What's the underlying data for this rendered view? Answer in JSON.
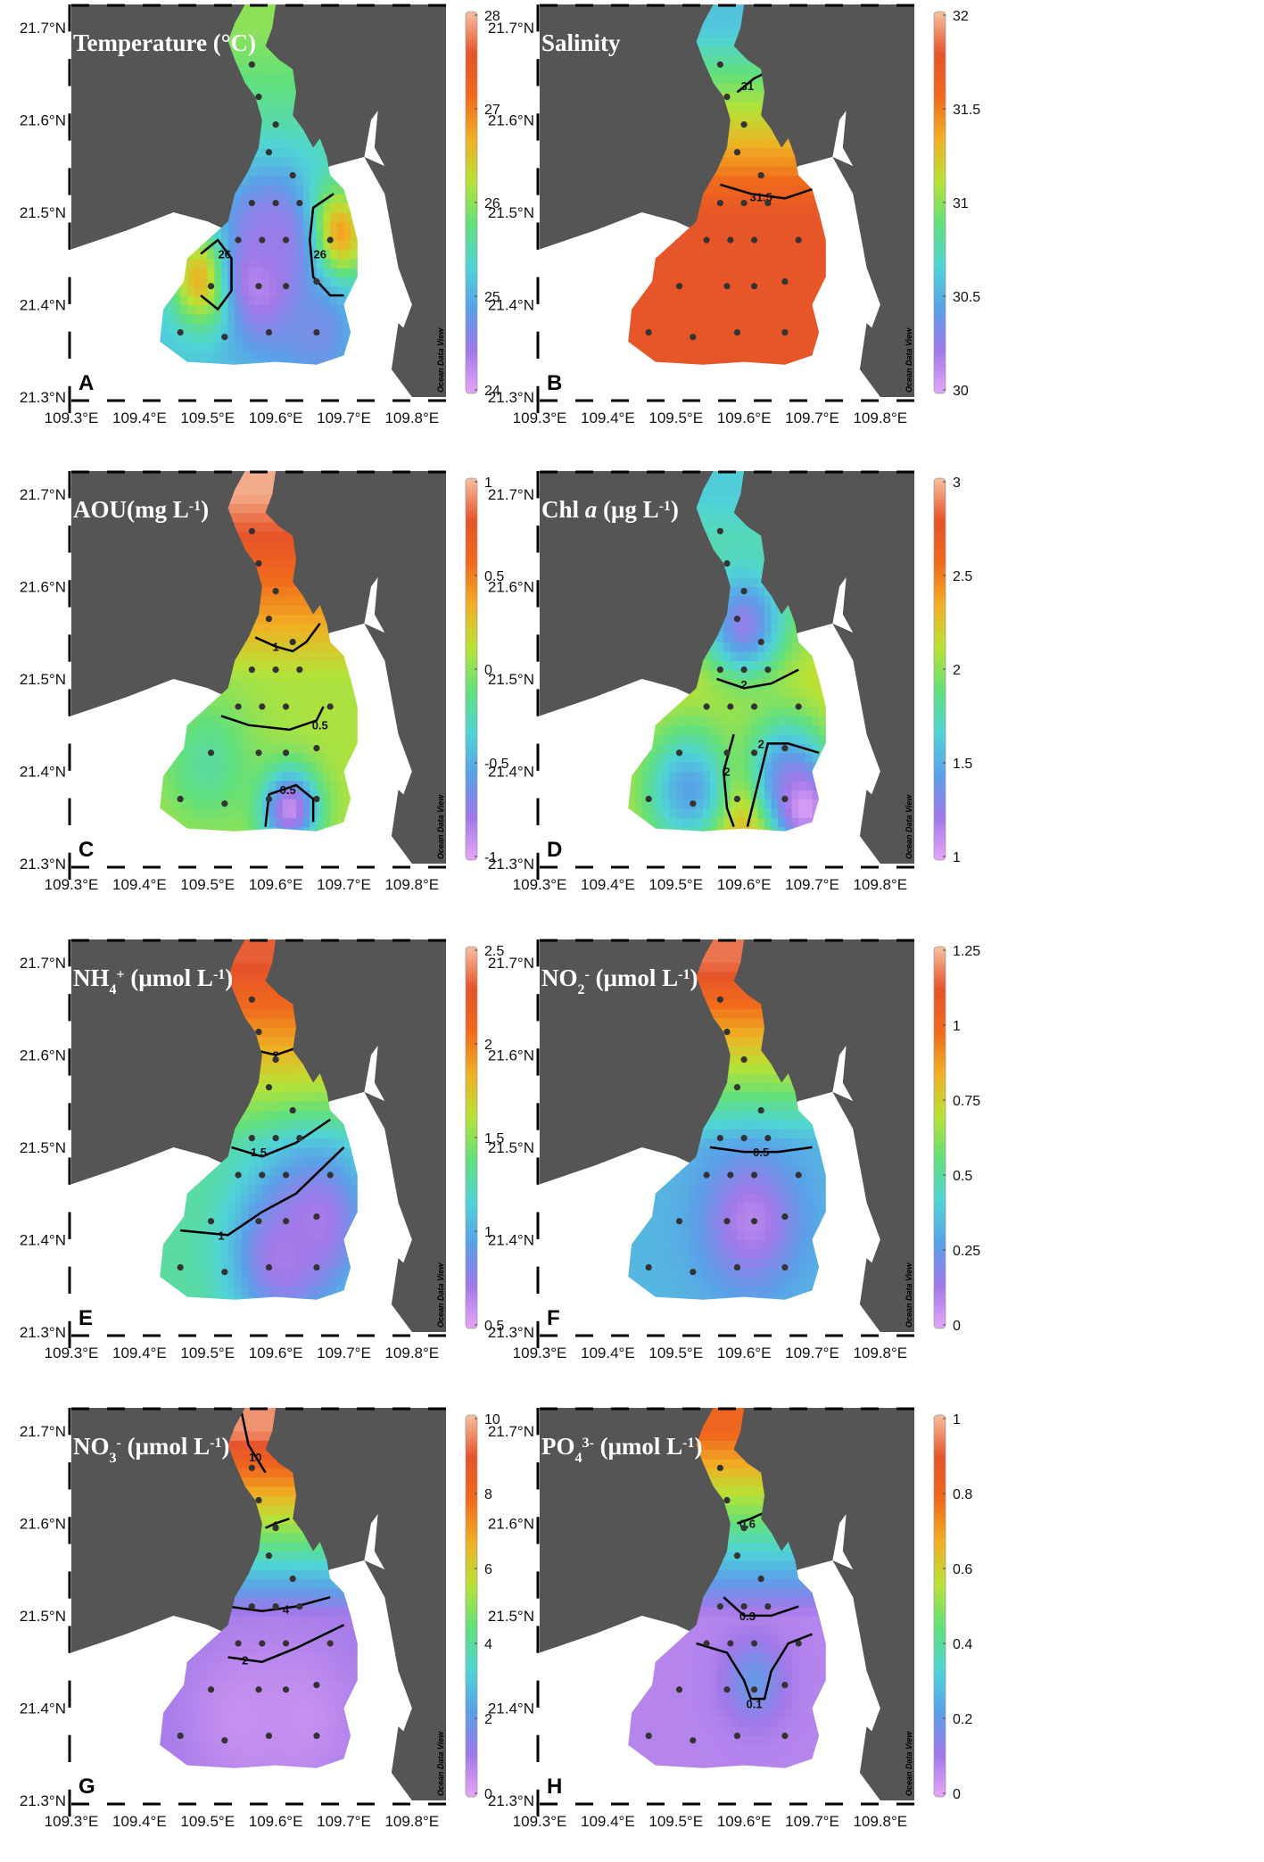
{
  "colors": {
    "land": "#555555",
    "background": "#ffffff",
    "colormap": [
      "#e7a6f7",
      "#a178e8",
      "#5aa0e8",
      "#4fd4d6",
      "#63e07a",
      "#b8e236",
      "#f0b024",
      "#f06a1c",
      "#e6532a",
      "#f6c0a0"
    ]
  },
  "watermark": "Ocean Data View",
  "lon_ticks": [
    "109.3°E",
    "109.4°E",
    "109.5°E",
    "109.6°E",
    "109.7°E",
    "109.8°E"
  ],
  "lat_ticks": [
    "21.7°N",
    "21.6°N",
    "21.5°N",
    "21.4°N",
    "21.3°N"
  ],
  "panels": [
    {
      "letter": "A",
      "title_parts": [
        {
          "t": "Temperature (°C)",
          "s": ""
        }
      ],
      "colorbar_ticks": [
        "28",
        "27",
        "26",
        "25",
        "24"
      ],
      "vmin": 24,
      "vmax": 28,
      "field": {
        "base": 25.2,
        "river": 26.0,
        "blobs": [
          [
            109.505,
            21.43,
            27.6,
            0.035
          ],
          [
            109.68,
            21.475,
            27.6,
            0.035
          ],
          [
            109.58,
            21.43,
            24.1,
            0.05
          ],
          [
            109.6,
            21.475,
            24.5,
            0.05
          ],
          [
            109.66,
            21.37,
            24.7,
            0.04
          ]
        ]
      },
      "contours": [
        {
          "label": "26",
          "pts": [
            [
              109.49,
              21.41
            ],
            [
              109.515,
              21.395
            ],
            [
              109.535,
              21.415
            ],
            [
              109.535,
              21.45
            ],
            [
              109.515,
              21.47
            ],
            [
              109.49,
              21.455
            ]
          ],
          "lx": 109.525,
          "ly": 21.455
        },
        {
          "label": "26",
          "pts": [
            [
              109.685,
              21.52
            ],
            [
              109.655,
              21.505
            ],
            [
              109.65,
              21.47
            ],
            [
              109.655,
              21.43
            ],
            [
              109.68,
              21.41
            ],
            [
              109.7,
              21.41
            ]
          ],
          "lx": 109.665,
          "ly": 21.455
        }
      ]
    },
    {
      "letter": "B",
      "title_parts": [
        {
          "t": "Salinity",
          "s": ""
        }
      ],
      "colorbar_ticks": [
        "32",
        "31.5",
        "31",
        "30.5",
        "30"
      ],
      "vmin": 30,
      "vmax": 32,
      "field": {
        "base": 31.75,
        "river": 30.6,
        "blobs": []
      },
      "contours": [
        {
          "label": "31",
          "pts": [
            [
              109.59,
              21.63
            ],
            [
              109.615,
              21.645
            ],
            [
              109.635,
              21.652
            ]
          ],
          "lx": 109.605,
          "ly": 21.637
        },
        {
          "label": "31.5",
          "pts": [
            [
              109.565,
              21.53
            ],
            [
              109.61,
              21.52
            ],
            [
              109.66,
              21.515
            ],
            [
              109.7,
              21.525
            ]
          ],
          "lx": 109.625,
          "ly": 21.517
        }
      ]
    },
    {
      "letter": "C",
      "title_parts": [
        {
          "t": "AOU(mg L",
          "s": ""
        },
        {
          "t": "-1",
          "s": "sup"
        },
        {
          "t": ")",
          "s": ""
        }
      ],
      "colorbar_ticks": [
        "1",
        "0.5",
        "0",
        "-0.5",
        "-1"
      ],
      "vmin": -1.2,
      "vmax": 1.3,
      "field": {
        "base": 0.15,
        "river": 1.25,
        "blobs": [
          [
            109.62,
            21.36,
            -1.1,
            0.03
          ],
          [
            109.5,
            21.41,
            -0.2,
            0.05
          ]
        ]
      },
      "contours": [
        {
          "label": "1",
          "pts": [
            [
              109.57,
              21.545
            ],
            [
              109.6,
              21.535
            ],
            [
              109.625,
              21.53
            ],
            [
              109.645,
              21.54
            ],
            [
              109.665,
              21.56
            ]
          ],
          "lx": 109.6,
          "ly": 21.535
        },
        {
          "label": "0.5",
          "pts": [
            [
              109.52,
              21.46
            ],
            [
              109.56,
              21.45
            ],
            [
              109.62,
              21.445
            ],
            [
              109.66,
              21.455
            ],
            [
              109.67,
              21.47
            ]
          ],
          "lx": 109.665,
          "ly": 21.45
        },
        {
          "label": "-0.5",
          "pts": [
            [
              109.585,
              21.34
            ],
            [
              109.59,
              21.375
            ],
            [
              109.63,
              21.385
            ],
            [
              109.655,
              21.37
            ],
            [
              109.655,
              21.345
            ]
          ],
          "lx": 109.615,
          "ly": 21.38
        }
      ]
    },
    {
      "letter": "D",
      "title_parts": [
        {
          "t": "Chl ",
          "s": ""
        },
        {
          "t": "a",
          "s": "i"
        },
        {
          "t": " (μg L",
          "s": ""
        },
        {
          "t": "-1",
          "s": "sup"
        },
        {
          "t": ")",
          "s": ""
        }
      ],
      "colorbar_ticks": [
        "3",
        "2.5",
        "2",
        "1.5",
        "1"
      ],
      "vmin": 0.9,
      "vmax": 3.1,
      "field": {
        "base": 2.2,
        "river": 1.6,
        "blobs": [
          [
            109.6,
            21.36,
            2.9,
            0.04
          ],
          [
            109.52,
            21.38,
            1.4,
            0.05
          ],
          [
            109.66,
            21.4,
            1.4,
            0.045
          ],
          [
            109.69,
            21.36,
            0.95,
            0.035
          ],
          [
            109.6,
            21.56,
            1.2,
            0.04
          ]
        ]
      },
      "contours": [
        {
          "label": "2",
          "pts": [
            [
              109.56,
              21.5
            ],
            [
              109.6,
              21.49
            ],
            [
              109.64,
              21.495
            ],
            [
              109.68,
              21.51
            ]
          ],
          "lx": 109.6,
          "ly": 21.494
        },
        {
          "label": "2",
          "pts": [
            [
              109.585,
              21.44
            ],
            [
              109.57,
              21.4
            ],
            [
              109.575,
              21.36
            ],
            [
              109.585,
              21.34
            ]
          ],
          "lx": 109.575,
          "ly": 21.4
        },
        {
          "label": "2",
          "pts": [
            [
              109.605,
              21.34
            ],
            [
              109.62,
              21.385
            ],
            [
              109.635,
              21.43
            ],
            [
              109.665,
              21.43
            ],
            [
              109.71,
              21.42
            ]
          ],
          "lx": 109.625,
          "ly": 21.43
        }
      ]
    },
    {
      "letter": "E",
      "title_parts": [
        {
          "t": "NH",
          "s": ""
        },
        {
          "t": "4",
          "s": "sub"
        },
        {
          "t": "+",
          "s": "sup"
        },
        {
          "t": " (μmol L",
          "s": ""
        },
        {
          "t": "-1",
          "s": "sup"
        },
        {
          "t": ")",
          "s": ""
        }
      ],
      "colorbar_ticks": [
        "2.5",
        "2",
        "1.5",
        "1",
        "0.5"
      ],
      "vmin": 0.5,
      "vmax": 2.5,
      "field": {
        "base": 1.3,
        "river": 2.3,
        "blobs": [
          [
            109.66,
            21.42,
            0.7,
            0.06
          ],
          [
            109.61,
            21.38,
            0.7,
            0.05
          ]
        ]
      },
      "contours": [
        {
          "label": "2",
          "pts": [
            [
              109.57,
              21.605
            ],
            [
              109.6,
              21.6
            ],
            [
              109.64,
              21.61
            ]
          ],
          "lx": 109.6,
          "ly": 21.6
        },
        {
          "label": "1.5",
          "pts": [
            [
              109.535,
              21.5
            ],
            [
              109.58,
              21.49
            ],
            [
              109.63,
              21.505
            ],
            [
              109.68,
              21.53
            ]
          ],
          "lx": 109.575,
          "ly": 21.495
        },
        {
          "label": "1",
          "pts": [
            [
              109.46,
              21.41
            ],
            [
              109.53,
              21.405
            ],
            [
              109.58,
              21.43
            ],
            [
              109.63,
              21.45
            ],
            [
              109.7,
              21.5
            ]
          ],
          "lx": 109.52,
          "ly": 21.405
        }
      ]
    },
    {
      "letter": "F",
      "title_parts": [
        {
          "t": "NO",
          "s": ""
        },
        {
          "t": "2",
          "s": "sub"
        },
        {
          "t": "-",
          "s": "sup"
        },
        {
          "t": " (μmol L",
          "s": ""
        },
        {
          "t": "-1",
          "s": "sup"
        },
        {
          "t": ")",
          "s": ""
        }
      ],
      "colorbar_ticks": [
        "1.25",
        "1",
        "0.75",
        "0.5",
        "0.25",
        "0"
      ],
      "vmin": 0,
      "vmax": 1.3,
      "field": {
        "base": 0.35,
        "river": 1.2,
        "blobs": [
          [
            109.61,
            21.42,
            0.1,
            0.05
          ]
        ]
      },
      "contours": [
        {
          "label": "0.5",
          "pts": [
            [
              109.55,
              21.5
            ],
            [
              109.6,
              21.495
            ],
            [
              109.65,
              21.495
            ],
            [
              109.7,
              21.5
            ]
          ],
          "lx": 109.625,
          "ly": 21.495
        }
      ]
    },
    {
      "letter": "G",
      "title_parts": [
        {
          "t": "NO",
          "s": ""
        },
        {
          "t": "3",
          "s": "sub"
        },
        {
          "t": "-",
          "s": "sup"
        },
        {
          "t": " (μmol L",
          "s": ""
        },
        {
          "t": "-1",
          "s": "sup"
        },
        {
          "t": ")",
          "s": ""
        }
      ],
      "colorbar_ticks": [
        "10",
        "8",
        "6",
        "4",
        "2",
        "0"
      ],
      "vmin": 0,
      "vmax": 11,
      "field": {
        "base": 1.2,
        "river": 10.5,
        "blobs": [
          [
            109.55,
            21.39,
            0.6,
            0.06
          ],
          [
            109.64,
            21.39,
            0.6,
            0.06
          ]
        ]
      },
      "contours": [
        {
          "label": "10",
          "pts": [
            [
              109.55,
              21.72
            ],
            [
              109.56,
              21.685
            ],
            [
              109.585,
              21.655
            ]
          ],
          "lx": 109.57,
          "ly": 21.672
        },
        {
          "label": "6",
          "pts": [
            [
              109.585,
              21.595
            ],
            [
              109.6,
              21.6
            ],
            [
              109.62,
              21.605
            ]
          ],
          "lx": 109.6,
          "ly": 21.598
        },
        {
          "label": "4",
          "pts": [
            [
              109.53,
              21.51
            ],
            [
              109.58,
              21.505
            ],
            [
              109.63,
              21.51
            ],
            [
              109.68,
              21.52
            ]
          ],
          "lx": 109.615,
          "ly": 21.507
        },
        {
          "label": "2",
          "pts": [
            [
              109.53,
              21.455
            ],
            [
              109.58,
              21.45
            ],
            [
              109.63,
              21.465
            ],
            [
              109.7,
              21.49
            ]
          ],
          "lx": 109.555,
          "ly": 21.452
        }
      ]
    },
    {
      "letter": "H",
      "title_parts": [
        {
          "t": "PO",
          "s": ""
        },
        {
          "t": "4",
          "s": "sub"
        },
        {
          "t": "3-",
          "s": "sup"
        },
        {
          "t": " (μmol L",
          "s": ""
        },
        {
          "t": "-1",
          "s": "sup"
        },
        {
          "t": ")",
          "s": ""
        }
      ],
      "colorbar_ticks": [
        "1",
        "0.8",
        "0.6",
        "0.4",
        "0.2",
        "0"
      ],
      "vmin": 0,
      "vmax": 1.0,
      "field": {
        "base": 0.08,
        "river": 0.8,
        "blobs": [
          [
            109.615,
            21.43,
            0.2,
            0.03
          ]
        ]
      },
      "contours": [
        {
          "label": "0.6",
          "pts": [
            [
              109.59,
              21.6
            ],
            [
              109.61,
              21.605
            ],
            [
              109.64,
              21.615
            ]
          ],
          "lx": 109.605,
          "ly": 21.6
        },
        {
          "label": "0.3",
          "pts": [
            [
              109.57,
              21.52
            ],
            [
              109.6,
              21.5
            ],
            [
              109.64,
              21.5
            ],
            [
              109.68,
              21.51
            ]
          ],
          "lx": 109.605,
          "ly": 21.5
        },
        {
          "label": "0.1",
          "pts": [
            [
              109.53,
              21.47
            ],
            [
              109.575,
              21.46
            ],
            [
              109.6,
              21.43
            ],
            [
              109.61,
              21.41
            ],
            [
              109.63,
              21.41
            ],
            [
              109.64,
              21.44
            ],
            [
              109.665,
              21.47
            ],
            [
              109.7,
              21.48
            ]
          ],
          "lx": 109.615,
          "ly": 21.405
        }
      ]
    }
  ],
  "stations": [
    [
      109.565,
      21.66
    ],
    [
      109.575,
      21.625
    ],
    [
      109.6,
      21.595
    ],
    [
      109.59,
      21.565
    ],
    [
      109.625,
      21.54
    ],
    [
      109.565,
      21.51
    ],
    [
      109.6,
      21.51
    ],
    [
      109.635,
      21.51
    ],
    [
      109.545,
      21.47
    ],
    [
      109.58,
      21.47
    ],
    [
      109.615,
      21.47
    ],
    [
      109.68,
      21.47
    ],
    [
      109.505,
      21.42
    ],
    [
      109.575,
      21.42
    ],
    [
      109.615,
      21.42
    ],
    [
      109.66,
      21.425
    ],
    [
      109.46,
      21.37
    ],
    [
      109.525,
      21.365
    ],
    [
      109.59,
      21.37
    ],
    [
      109.66,
      21.37
    ]
  ]
}
